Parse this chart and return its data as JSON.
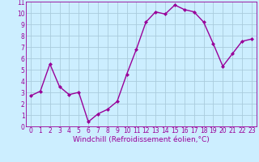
{
  "x": [
    0,
    1,
    2,
    3,
    4,
    5,
    6,
    7,
    8,
    9,
    10,
    11,
    12,
    13,
    14,
    15,
    16,
    17,
    18,
    19,
    20,
    21,
    22,
    23
  ],
  "y": [
    2.7,
    3.1,
    5.5,
    3.5,
    2.8,
    3.0,
    0.4,
    1.1,
    1.5,
    2.2,
    4.6,
    6.8,
    9.2,
    10.1,
    9.9,
    10.7,
    10.3,
    10.1,
    9.2,
    7.3,
    5.3,
    6.4,
    7.5,
    7.7
  ],
  "line_color": "#990099",
  "marker": "D",
  "marker_size": 2.0,
  "bg_color": "#cceeff",
  "grid_color": "#aaccdd",
  "xlabel": "Windchill (Refroidissement éolien,°C)",
  "xlabel_color": "#990099",
  "ylim": [
    0,
    11
  ],
  "xlim": [
    -0.5,
    23.5
  ],
  "yticks": [
    0,
    1,
    2,
    3,
    4,
    5,
    6,
    7,
    8,
    9,
    10,
    11
  ],
  "xticks": [
    0,
    1,
    2,
    3,
    4,
    5,
    6,
    7,
    8,
    9,
    10,
    11,
    12,
    13,
    14,
    15,
    16,
    17,
    18,
    19,
    20,
    21,
    22,
    23
  ],
  "tick_color": "#990099",
  "tick_fontsize": 5.5,
  "xlabel_fontsize": 6.5,
  "line_width": 1.0
}
